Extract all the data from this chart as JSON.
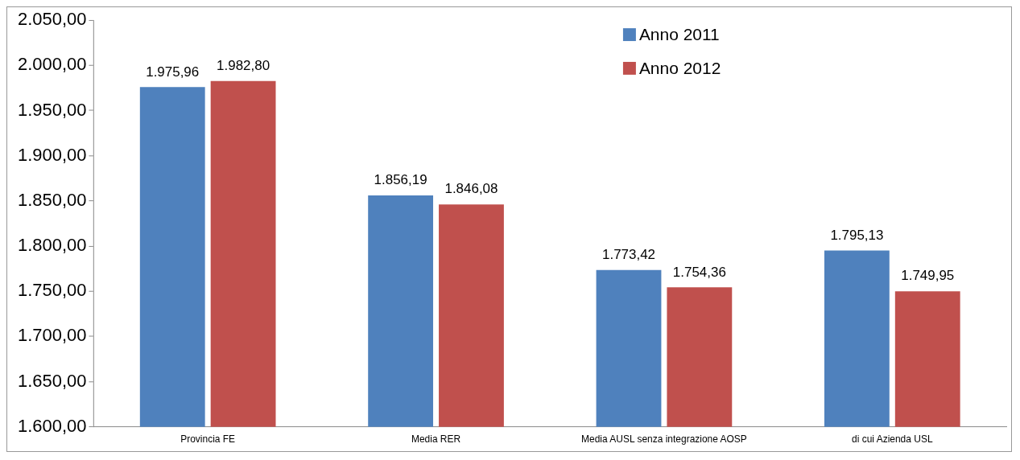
{
  "chart_data": {
    "type": "bar",
    "categories": [
      "Provincia FE",
      "Media RER",
      "Media AUSL senza integrazione AOSP",
      "di cui Azienda USL"
    ],
    "series": [
      {
        "name": "Anno 2011",
        "color": "#4f81bd",
        "values": [
          1975.96,
          1856.19,
          1773.42,
          1795.13
        ],
        "value_labels": [
          "1.975,96",
          "1.856,19",
          "1.773,42",
          "1.795,13"
        ]
      },
      {
        "name": "Anno 2012",
        "color": "#c0504d",
        "values": [
          1982.8,
          1846.08,
          1754.36,
          1749.95
        ],
        "value_labels": [
          "1.982,80",
          "1.846,08",
          "1.754,36",
          "1.749,95"
        ]
      }
    ],
    "ylim": [
      1600,
      2050
    ],
    "yticks": [
      {
        "value": 1600,
        "label": "1.600,00"
      },
      {
        "value": 1650,
        "label": "1.650,00"
      },
      {
        "value": 1700,
        "label": "1.700,00"
      },
      {
        "value": 1750,
        "label": "1.750,00"
      },
      {
        "value": 1800,
        "label": "1.800,00"
      },
      {
        "value": 1850,
        "label": "1.850,00"
      },
      {
        "value": 1900,
        "label": "1.900,00"
      },
      {
        "value": 1950,
        "label": "1.950,00"
      },
      {
        "value": 2000,
        "label": "2.000,00"
      },
      {
        "value": 2050,
        "label": "2.050,00"
      }
    ],
    "grid": false,
    "legend": "top right"
  }
}
